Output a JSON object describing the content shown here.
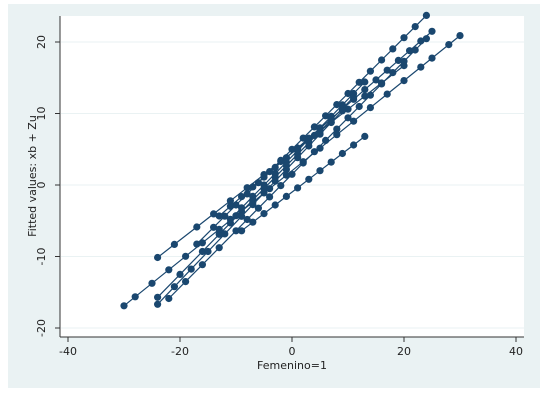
{
  "chart_data": {
    "type": "line",
    "subtype": "connected scatter (one line per group)",
    "xlabel": "Femenino=1",
    "ylabel": "Fitted values: xb + Zu",
    "xlim": [
      -40,
      40
    ],
    "ylim": [
      -20,
      23
    ],
    "xticks": [
      "-40",
      "-20",
      "0",
      "20",
      "40"
    ],
    "yticks": [
      "-20",
      "-10",
      "0",
      "10",
      "20"
    ],
    "grid": "horizontal",
    "colors": {
      "series": "#1a476f",
      "background": "#eaf2f3",
      "plot": "#ffffff",
      "grid": "#eaf2f3"
    },
    "series": [
      {
        "slope": 0.61,
        "intercept": 4.5,
        "x": [
          -24,
          -21,
          -17,
          -14,
          -11,
          -8,
          -5,
          -2,
          1,
          4,
          7,
          10,
          13,
          16,
          20
        ]
      },
      {
        "slope": 0.78,
        "intercept": 5.0,
        "x": [
          -17,
          -14,
          -12,
          -10,
          -8,
          -6,
          -4,
          -2,
          0,
          2,
          4,
          6,
          8,
          10,
          12,
          14,
          16,
          18,
          20,
          22,
          24
        ]
      },
      {
        "slope": 0.68,
        "intercept": 4.5,
        "x": [
          -13,
          -11,
          -9,
          -7,
          -5,
          -3,
          -1,
          1,
          3,
          5,
          7,
          9,
          11,
          13,
          15,
          17,
          19,
          21,
          23,
          25
        ]
      },
      {
        "slope": 0.8,
        "intercept": 4.0,
        "x": [
          -11,
          -9,
          -7,
          -5,
          -3,
          -1,
          1,
          3,
          5,
          7,
          9,
          11,
          13
        ]
      },
      {
        "slope": 0.79,
        "intercept": 1.5,
        "x": [
          -22,
          -19,
          -16,
          -13,
          -10,
          -8,
          -6,
          -4,
          -2,
          0,
          2,
          4,
          6,
          8,
          10,
          12,
          14,
          16,
          18,
          20,
          22,
          24
        ]
      },
      {
        "slope": 0.8,
        "intercept": 3.5,
        "x": [
          -24,
          -20,
          -16,
          -13,
          -11,
          -9,
          -7,
          -5,
          -3,
          -1,
          1,
          3,
          5,
          7,
          9,
          11
        ]
      },
      {
        "slope": 0.63,
        "intercept": 2.0,
        "x": [
          -30,
          -28,
          -25,
          -22,
          -19,
          -16,
          -13,
          -10,
          -7,
          -4,
          -1,
          2,
          5,
          8,
          11,
          14,
          17,
          20,
          23,
          25,
          28,
          30
        ]
      },
      {
        "slope": 0.6,
        "intercept": -1.0,
        "x": [
          -9,
          -7,
          -5,
          -3,
          -1,
          1,
          3,
          5,
          7,
          9,
          11,
          13
        ]
      },
      {
        "slope": 0.82,
        "intercept": 3.0,
        "x": [
          -24,
          -21,
          -18,
          -15,
          -12,
          -9,
          -7,
          -5,
          -3,
          -1,
          1,
          3,
          5,
          7,
          9
        ]
      }
    ]
  }
}
